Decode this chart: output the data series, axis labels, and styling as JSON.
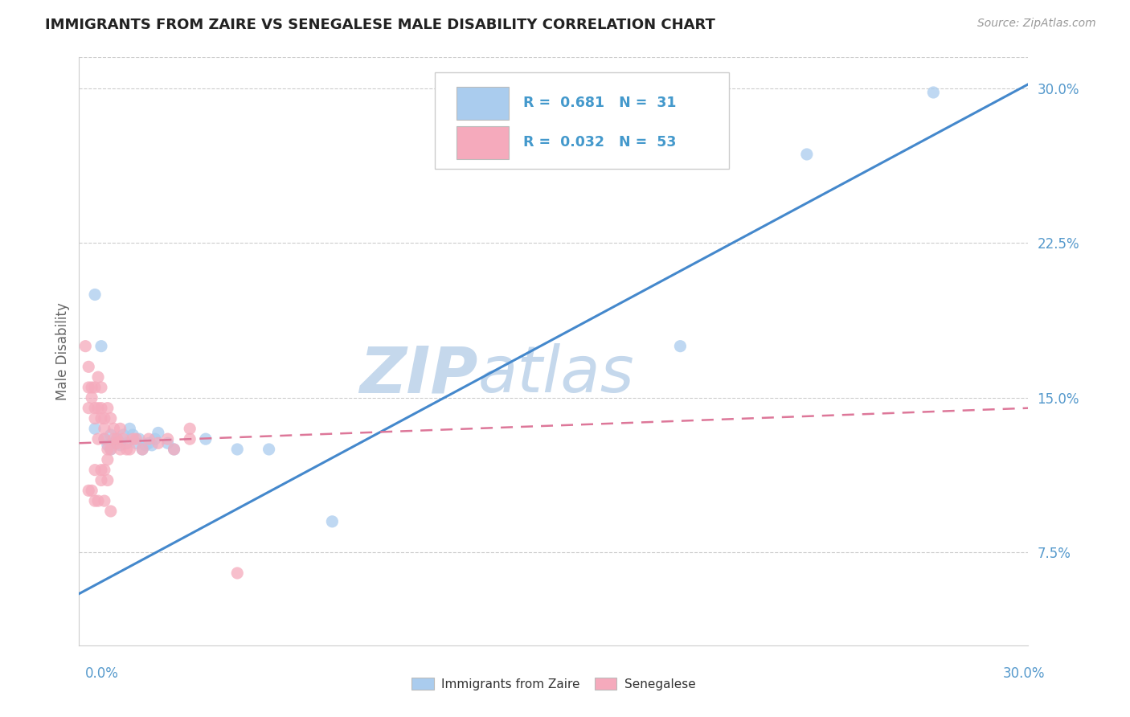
{
  "title": "IMMIGRANTS FROM ZAIRE VS SENEGALESE MALE DISABILITY CORRELATION CHART",
  "source": "Source: ZipAtlas.com",
  "ylabel": "Male Disability",
  "x_min": 0.0,
  "x_max": 0.3,
  "y_min": 0.03,
  "y_max": 0.315,
  "yticks": [
    0.075,
    0.15,
    0.225,
    0.3
  ],
  "ytick_labels": [
    "7.5%",
    "15.0%",
    "22.5%",
    "30.0%"
  ],
  "legend_R1": "R =  0.681",
  "legend_N1": "N =  31",
  "legend_R2": "R =  0.032",
  "legend_N2": "N =  53",
  "blue_color": "#AACCEE",
  "pink_color": "#F5AABC",
  "blue_line_color": "#4488CC",
  "pink_line_color": "#DD7799",
  "watermark_zip_color": "#C5D8EC",
  "watermark_atlas_color": "#C5D8EC",
  "title_color": "#222222",
  "axis_label_color": "#5599CC",
  "legend_text_color": "#4499CC",
  "background_color": "#FFFFFF",
  "grid_color": "#CCCCCC",
  "blue_scatter_x": [
    0.005,
    0.005,
    0.007,
    0.008,
    0.009,
    0.01,
    0.01,
    0.011,
    0.012,
    0.013,
    0.014,
    0.015,
    0.016,
    0.017,
    0.018,
    0.019,
    0.02,
    0.021,
    0.022,
    0.023,
    0.024,
    0.025,
    0.028,
    0.03,
    0.04,
    0.05,
    0.06,
    0.08,
    0.19,
    0.23,
    0.27
  ],
  "blue_scatter_y": [
    0.2,
    0.135,
    0.175,
    0.13,
    0.127,
    0.132,
    0.125,
    0.128,
    0.13,
    0.127,
    0.132,
    0.128,
    0.135,
    0.132,
    0.128,
    0.13,
    0.125,
    0.127,
    0.128,
    0.127,
    0.13,
    0.133,
    0.128,
    0.125,
    0.13,
    0.125,
    0.125,
    0.09,
    0.175,
    0.268,
    0.298
  ],
  "pink_scatter_x": [
    0.002,
    0.003,
    0.003,
    0.003,
    0.004,
    0.004,
    0.005,
    0.005,
    0.005,
    0.006,
    0.006,
    0.006,
    0.007,
    0.007,
    0.007,
    0.008,
    0.008,
    0.008,
    0.009,
    0.009,
    0.009,
    0.01,
    0.01,
    0.011,
    0.011,
    0.012,
    0.012,
    0.013,
    0.013,
    0.014,
    0.015,
    0.016,
    0.017,
    0.018,
    0.02,
    0.022,
    0.025,
    0.028,
    0.03,
    0.035,
    0.003,
    0.004,
    0.005,
    0.005,
    0.006,
    0.007,
    0.007,
    0.008,
    0.008,
    0.009,
    0.01,
    0.035,
    0.05
  ],
  "pink_scatter_y": [
    0.175,
    0.165,
    0.155,
    0.145,
    0.155,
    0.15,
    0.145,
    0.14,
    0.155,
    0.13,
    0.145,
    0.16,
    0.14,
    0.145,
    0.155,
    0.13,
    0.135,
    0.14,
    0.12,
    0.125,
    0.145,
    0.125,
    0.14,
    0.13,
    0.135,
    0.128,
    0.13,
    0.125,
    0.135,
    0.13,
    0.125,
    0.125,
    0.13,
    0.13,
    0.125,
    0.13,
    0.128,
    0.13,
    0.125,
    0.13,
    0.105,
    0.105,
    0.1,
    0.115,
    0.1,
    0.11,
    0.115,
    0.1,
    0.115,
    0.11,
    0.095,
    0.135,
    0.065
  ],
  "blue_trend_x": [
    0.0,
    0.3
  ],
  "blue_trend_y": [
    0.055,
    0.302
  ],
  "pink_trend_x": [
    0.0,
    0.3
  ],
  "pink_trend_y": [
    0.128,
    0.145
  ]
}
